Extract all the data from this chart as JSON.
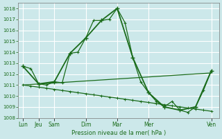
{
  "background_color": "#cce8ea",
  "grid_color": "#ffffff",
  "line_color": "#1a6b1a",
  "xlabel": "Pression niveau de la mer( hPa )",
  "ylim": [
    1008,
    1018.5
  ],
  "yticks": [
    1008,
    1009,
    1010,
    1011,
    1012,
    1013,
    1014,
    1015,
    1016,
    1017,
    1018
  ],
  "xaxis_labels_shown": [
    "Lun",
    "Jeu",
    "Sam",
    "Dim",
    "Mar",
    "Mer",
    "Ven"
  ],
  "xaxis_label_positions": [
    0,
    1,
    2,
    4,
    6,
    8,
    12
  ],
  "series_peak_x": [
    0,
    0.5,
    1.0,
    1.5,
    2.0,
    2.5,
    3.0,
    3.5,
    4.0,
    4.5,
    5.0,
    5.5,
    6.0,
    6.5,
    7.0,
    7.5,
    8.0,
    8.5,
    9.0,
    9.5,
    10.0,
    10.5,
    11.0,
    11.5,
    12.0
  ],
  "series_peak_y": [
    1012.7,
    1012.5,
    1011.1,
    1011.0,
    1011.3,
    1011.2,
    1013.9,
    1014.0,
    1015.3,
    1016.9,
    1016.9,
    1017.0,
    1018.0,
    1016.7,
    1013.5,
    1011.3,
    1010.3,
    1009.5,
    1009.0,
    1009.5,
    1008.7,
    1008.5,
    1009.0,
    1010.5,
    1012.3
  ],
  "series_low_x": [
    0,
    0.5,
    1.0,
    1.5,
    2.0,
    2.5,
    3.0,
    3.5,
    4.0,
    4.5,
    5.0,
    5.5,
    6.0,
    6.5,
    7.0,
    7.5,
    8.0,
    8.5,
    9.0,
    9.5,
    10.0,
    10.5,
    11.0,
    11.5,
    12.0
  ],
  "series_low_y": [
    1011.0,
    1010.9,
    1010.8,
    1010.7,
    1010.6,
    1010.5,
    1010.4,
    1010.3,
    1010.2,
    1010.1,
    1010.0,
    1009.9,
    1009.8,
    1009.7,
    1009.6,
    1009.5,
    1009.4,
    1009.3,
    1009.2,
    1009.1,
    1009.0,
    1008.9,
    1008.8,
    1008.7,
    1008.6
  ],
  "series_trend_x": [
    0,
    12
  ],
  "series_trend_y": [
    1011.0,
    1012.1
  ],
  "series_main_x": [
    0,
    1,
    2,
    3,
    4,
    5,
    6,
    7,
    8,
    9,
    10,
    11,
    12
  ],
  "series_main_y": [
    1012.7,
    1011.1,
    1011.3,
    1013.9,
    1015.3,
    1016.9,
    1018.0,
    1013.5,
    1010.3,
    1009.0,
    1008.7,
    1009.0,
    1012.3
  ]
}
